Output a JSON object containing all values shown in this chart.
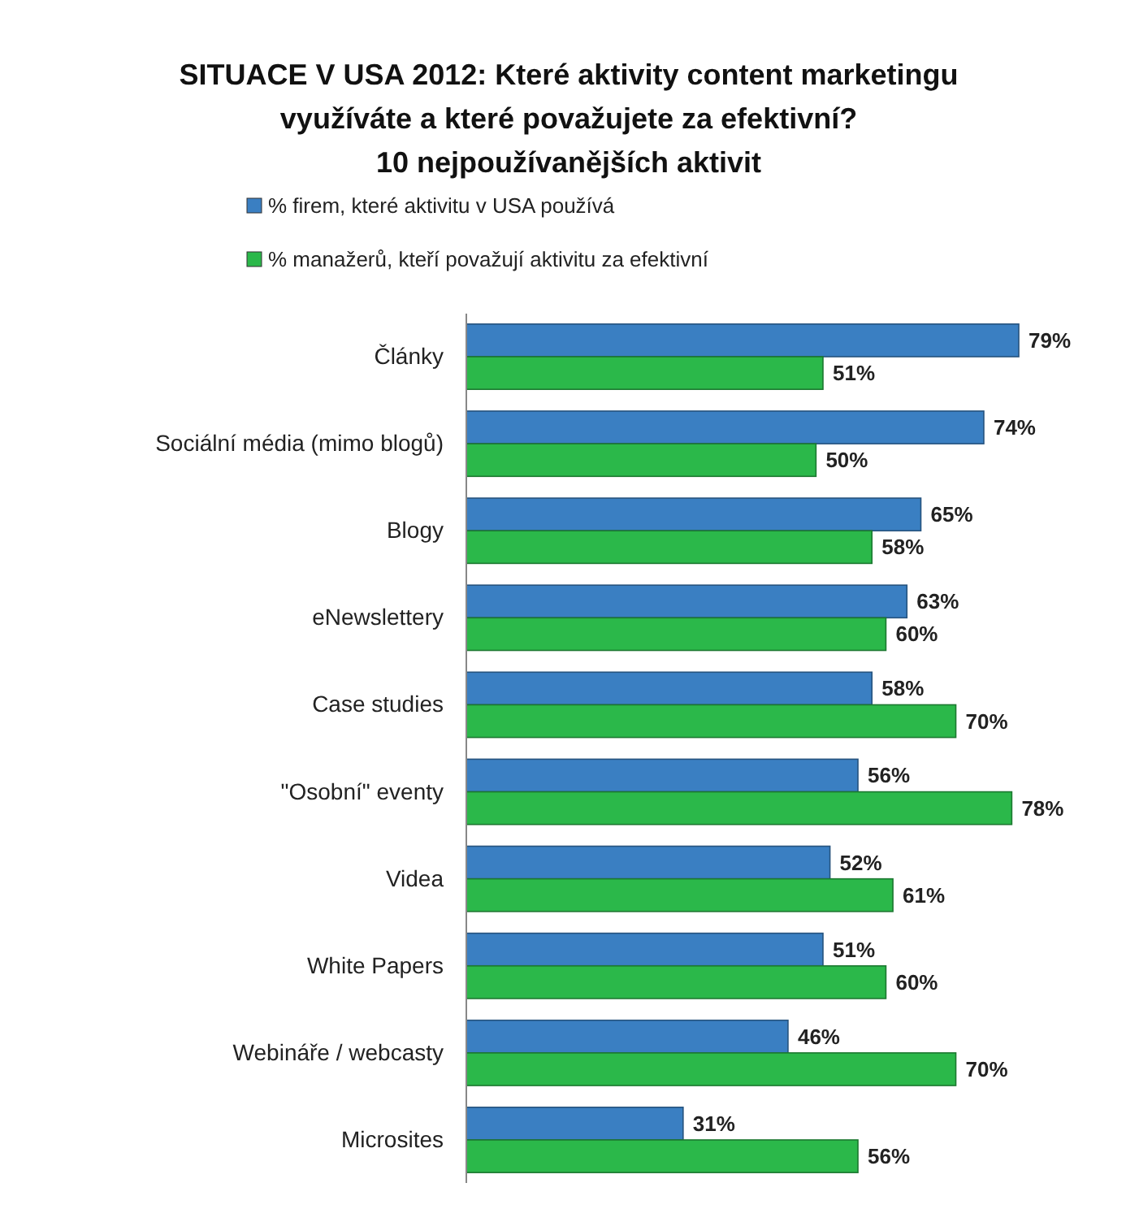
{
  "chart_data": {
    "type": "bar",
    "orientation": "horizontal",
    "title": "SITUACE V USA 2012: Které aktivity content marketingu využíváte a které považujete za efektivní?",
    "subtitle": "10 nejpoužívanějších aktivit",
    "categories": [
      "Články",
      "Sociální média (mimo blogů)",
      "Blogy",
      "eNewslettery",
      "Case studies",
      "\"Osobní\" eventy",
      "Videa",
      "White Papers",
      "Webináře / webcasty",
      "Microsites"
    ],
    "series": [
      {
        "name": "% firem, které aktivitu v USA používá",
        "color": "#3a7fc2",
        "values": [
          79,
          74,
          65,
          63,
          58,
          56,
          52,
          51,
          46,
          31
        ],
        "value_labels": [
          "79%",
          "74%",
          "65%",
          "63%",
          "58%",
          "56%",
          "52%",
          "51%",
          "46%",
          "31%"
        ]
      },
      {
        "name": "% manažerů, kteří považují aktivitu za efektivní",
        "color": "#2bb84a",
        "values": [
          51,
          50,
          58,
          60,
          70,
          78,
          61,
          60,
          70,
          56
        ],
        "value_labels": [
          "51%",
          "50%",
          "58%",
          "60%",
          "70%",
          "78%",
          "61%",
          "60%",
          "70%",
          "56%"
        ]
      }
    ],
    "legend": "top"
  }
}
